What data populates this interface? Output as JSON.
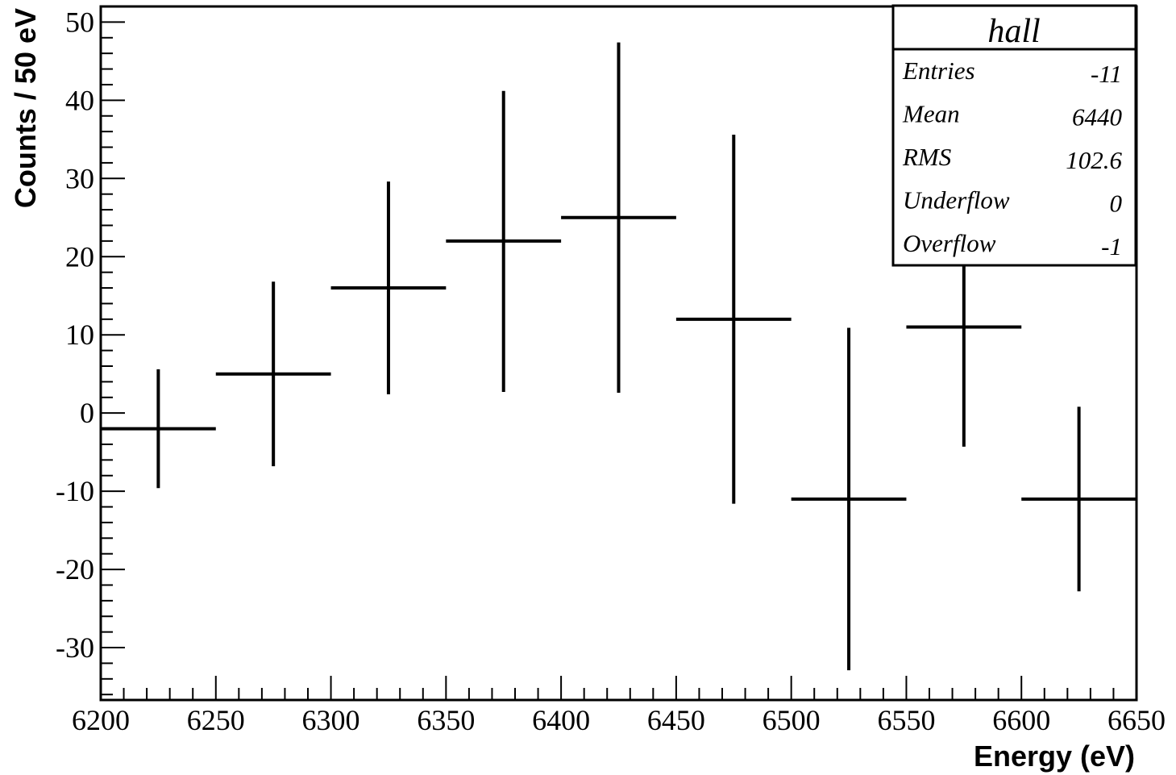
{
  "chart_data": {
    "type": "histogram-errorbar",
    "xlabel": "Energy (eV)",
    "ylabel": "Counts / 50 eV",
    "xlim": [
      6200,
      6650
    ],
    "ylim": [
      -36.7,
      52
    ],
    "x_ticks": [
      "6200",
      "6250",
      "6300",
      "6350",
      "6400",
      "6450",
      "6500",
      "6550",
      "6600",
      "6650"
    ],
    "y_ticks": [
      "-30",
      "-20",
      "-10",
      "0",
      "10",
      "20",
      "30",
      "40",
      "50"
    ],
    "bins": [
      {
        "xlow": 6200,
        "xhigh": 6250,
        "x": 6225,
        "y": -2,
        "ylow": -9.6,
        "yhigh": 5.6
      },
      {
        "xlow": 6250,
        "xhigh": 6300,
        "x": 6275,
        "y": 5,
        "ylow": -6.8,
        "yhigh": 16.8
      },
      {
        "xlow": 6300,
        "xhigh": 6350,
        "x": 6325,
        "y": 16,
        "ylow": 2.4,
        "yhigh": 29.6
      },
      {
        "xlow": 6350,
        "xhigh": 6400,
        "x": 6375,
        "y": 22,
        "ylow": 2.7,
        "yhigh": 41.2
      },
      {
        "xlow": 6400,
        "xhigh": 6450,
        "x": 6425,
        "y": 25,
        "ylow": 2.6,
        "yhigh": 47.4
      },
      {
        "xlow": 6450,
        "xhigh": 6500,
        "x": 6475,
        "y": 12,
        "ylow": -11.6,
        "yhigh": 35.6
      },
      {
        "xlow": 6500,
        "xhigh": 6550,
        "x": 6525,
        "y": -11,
        "ylow": -32.9,
        "yhigh": 10.9
      },
      {
        "xlow": 6550,
        "xhigh": 6600,
        "x": 6575,
        "y": 11,
        "ylow": -4.3,
        "yhigh": 26.3
      },
      {
        "xlow": 6600,
        "xhigh": 6650,
        "x": 6625,
        "y": -11,
        "ylow": -22.8,
        "yhigh": 0.8
      }
    ],
    "stats_box": {
      "title": "hall",
      "position": "top-right",
      "rows": [
        {
          "label": "Entries",
          "value": "-11"
        },
        {
          "label": "Mean",
          "value": "6440"
        },
        {
          "label": "RMS",
          "value": "102.6"
        },
        {
          "label": "Underflow",
          "value": "0"
        },
        {
          "label": "Overflow",
          "value": "-1"
        }
      ]
    },
    "grid": false,
    "colors": {
      "line": "#000000",
      "background": "#ffffff"
    }
  }
}
